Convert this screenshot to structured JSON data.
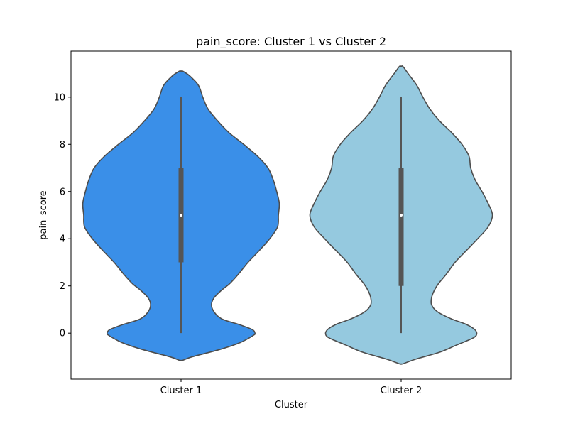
{
  "chart_data": {
    "type": "violin",
    "title": "pain_score: Cluster 1 vs Cluster 2",
    "xlabel": "Cluster",
    "ylabel": "pain_score",
    "categories": [
      "Cluster 1",
      "Cluster 2"
    ],
    "ylim": [
      -1.95,
      11.95
    ],
    "yticks": [
      0,
      2,
      4,
      6,
      8,
      10
    ],
    "grid": false,
    "series": [
      {
        "category": "Cluster 1",
        "color": "#3a8fe8",
        "min": 0,
        "q1": 3,
        "median": 5,
        "q3": 7,
        "max": 10,
        "density": [
          [
            -1.15,
            0.02
          ],
          [
            -1.0,
            0.13
          ],
          [
            -0.7,
            0.44
          ],
          [
            -0.4,
            0.68
          ],
          [
            -0.1,
            0.83
          ],
          [
            0.0,
            0.85
          ],
          [
            0.15,
            0.82
          ],
          [
            0.35,
            0.68
          ],
          [
            0.6,
            0.47
          ],
          [
            0.9,
            0.38
          ],
          [
            1.2,
            0.35
          ],
          [
            1.5,
            0.38
          ],
          [
            1.8,
            0.46
          ],
          [
            2.1,
            0.56
          ],
          [
            2.5,
            0.66
          ],
          [
            3.0,
            0.77
          ],
          [
            3.5,
            0.9
          ],
          [
            4.0,
            1.02
          ],
          [
            4.5,
            1.11
          ],
          [
            5.0,
            1.12
          ],
          [
            5.5,
            1.13
          ],
          [
            6.0,
            1.1
          ],
          [
            6.5,
            1.06
          ],
          [
            7.0,
            1.0
          ],
          [
            7.5,
            0.88
          ],
          [
            8.0,
            0.72
          ],
          [
            8.5,
            0.55
          ],
          [
            9.0,
            0.42
          ],
          [
            9.5,
            0.31
          ],
          [
            10.0,
            0.25
          ],
          [
            10.5,
            0.2
          ],
          [
            10.9,
            0.1
          ],
          [
            11.1,
            0.02
          ]
        ]
      },
      {
        "category": "Cluster 2",
        "color": "#95c9df",
        "min": 0,
        "q1": 2,
        "median": 5,
        "q3": 7,
        "max": 10,
        "density": [
          [
            -1.3,
            0.02
          ],
          [
            -1.1,
            0.17
          ],
          [
            -0.8,
            0.45
          ],
          [
            -0.5,
            0.64
          ],
          [
            -0.2,
            0.83
          ],
          [
            0.0,
            0.87
          ],
          [
            0.2,
            0.83
          ],
          [
            0.4,
            0.73
          ],
          [
            0.6,
            0.58
          ],
          [
            0.9,
            0.42
          ],
          [
            1.2,
            0.35
          ],
          [
            1.5,
            0.35
          ],
          [
            1.8,
            0.38
          ],
          [
            2.1,
            0.43
          ],
          [
            2.5,
            0.52
          ],
          [
            3.0,
            0.62
          ],
          [
            3.5,
            0.75
          ],
          [
            4.0,
            0.88
          ],
          [
            4.5,
            1.0
          ],
          [
            5.0,
            1.05
          ],
          [
            5.5,
            1.0
          ],
          [
            6.0,
            0.93
          ],
          [
            6.5,
            0.85
          ],
          [
            7.0,
            0.8
          ],
          [
            7.5,
            0.78
          ],
          [
            8.0,
            0.7
          ],
          [
            8.5,
            0.58
          ],
          [
            9.0,
            0.44
          ],
          [
            9.5,
            0.33
          ],
          [
            10.0,
            0.25
          ],
          [
            10.5,
            0.18
          ],
          [
            11.0,
            0.08
          ],
          [
            11.3,
            0.02
          ]
        ]
      }
    ]
  }
}
